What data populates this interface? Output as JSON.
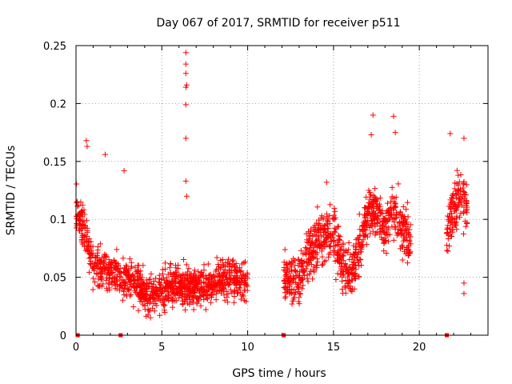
{
  "chart_data": {
    "type": "scatter",
    "title": "Day 067 of 2017, SRMTID for receiver p511",
    "xlabel": "GPS time / hours",
    "ylabel": "SRMTID / TECUs",
    "xlim": [
      0,
      24
    ],
    "ylim": [
      0,
      0.25
    ],
    "x_ticks": [
      0,
      5,
      10,
      15,
      20
    ],
    "x_tick_labels": [
      "0",
      "5",
      "10",
      "15",
      "20"
    ],
    "y_ticks": [
      0,
      0.05,
      0.1,
      0.15,
      0.2,
      0.25
    ],
    "y_tick_labels": [
      "0",
      "0.05",
      "0.1",
      "0.15",
      "0.2",
      "0.25"
    ],
    "grid": true,
    "marker": "plus",
    "color": "#ff0000",
    "series": [
      {
        "name": "SRMTID",
        "segments": [
          {
            "start": 0.0,
            "end": 10.0,
            "trend": [
              [
                0.0,
                0.11
              ],
              [
                0.5,
                0.09
              ],
              [
                1.0,
                0.06
              ],
              [
                2.0,
                0.055
              ],
              [
                3.0,
                0.05
              ],
              [
                4.0,
                0.035
              ],
              [
                5.0,
                0.04
              ],
              [
                6.0,
                0.045
              ],
              [
                7.0,
                0.04
              ],
              [
                8.0,
                0.045
              ],
              [
                9.0,
                0.05
              ],
              [
                10.0,
                0.045
              ]
            ],
            "spread": 0.022
          },
          {
            "start": 12.1,
            "end": 19.5,
            "trend": [
              [
                12.1,
                0.05
              ],
              [
                12.5,
                0.045
              ],
              [
                13.0,
                0.05
              ],
              [
                13.5,
                0.07
              ],
              [
                14.0,
                0.08
              ],
              [
                14.5,
                0.085
              ],
              [
                15.0,
                0.09
              ],
              [
                15.5,
                0.06
              ],
              [
                16.0,
                0.05
              ],
              [
                16.5,
                0.075
              ],
              [
                17.0,
                0.105
              ],
              [
                17.5,
                0.11
              ],
              [
                18.0,
                0.09
              ],
              [
                18.5,
                0.11
              ],
              [
                19.0,
                0.09
              ],
              [
                19.5,
                0.08
              ]
            ],
            "spread": 0.028
          },
          {
            "start": 21.6,
            "end": 22.8,
            "trend": [
              [
                21.6,
                0.09
              ],
              [
                22.0,
                0.11
              ],
              [
                22.4,
                0.12
              ],
              [
                22.8,
                0.11
              ]
            ],
            "spread": 0.03
          }
        ],
        "outliers": [
          {
            "x": 6.4,
            "y": 0.244
          },
          {
            "x": 6.4,
            "y": 0.234
          },
          {
            "x": 6.4,
            "y": 0.226
          },
          {
            "x": 6.45,
            "y": 0.216
          },
          {
            "x": 6.4,
            "y": 0.214
          },
          {
            "x": 6.4,
            "y": 0.199
          },
          {
            "x": 6.4,
            "y": 0.17
          },
          {
            "x": 6.4,
            "y": 0.133
          },
          {
            "x": 6.45,
            "y": 0.12
          },
          {
            "x": 0.6,
            "y": 0.168
          },
          {
            "x": 0.65,
            "y": 0.163
          },
          {
            "x": 1.7,
            "y": 0.156
          },
          {
            "x": 2.8,
            "y": 0.142
          },
          {
            "x": 17.3,
            "y": 0.19
          },
          {
            "x": 18.5,
            "y": 0.189
          },
          {
            "x": 17.2,
            "y": 0.173
          },
          {
            "x": 18.6,
            "y": 0.175
          },
          {
            "x": 21.8,
            "y": 0.174
          },
          {
            "x": 22.6,
            "y": 0.17
          },
          {
            "x": 14.6,
            "y": 0.132
          },
          {
            "x": 22.6,
            "y": 0.045
          },
          {
            "x": 22.6,
            "y": 0.036
          }
        ]
      }
    ],
    "zero_markers_x": [
      0.1,
      2.6,
      12.1,
      21.6
    ]
  }
}
